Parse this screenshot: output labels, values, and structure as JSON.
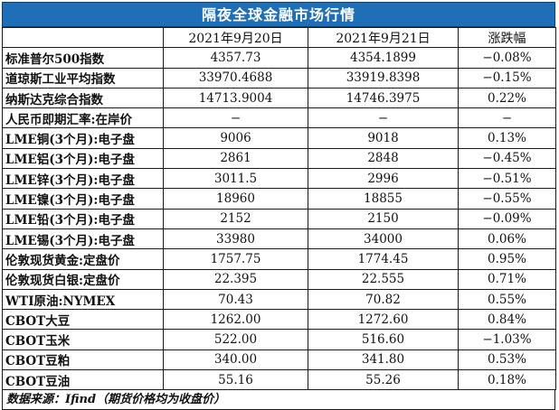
{
  "title": "隔夜全球金融市场行情",
  "headers": [
    "",
    "2021年9月20日",
    "2021年9月21日",
    "涨跌幅"
  ],
  "rows": [
    {
      "name": "标准普尔500指数",
      "d1": "4357.73",
      "d2": "4354.1899",
      "chg": "−0.08%"
    },
    {
      "name": "道琼斯工业平均指数",
      "d1": "33970.4688",
      "d2": "33919.8398",
      "chg": "−0.15%"
    },
    {
      "name": "纳斯达克综合指数",
      "d1": "14713.9004",
      "d2": "14746.3975",
      "chg": "0.22%"
    },
    {
      "name": "人民币即期汇率:在岸价",
      "d1": "−",
      "d2": "−",
      "chg": "−"
    },
    {
      "name": "LME铜(3个月):电子盘",
      "d1": "9006",
      "d2": "9018",
      "chg": "0.13%"
    },
    {
      "name": "LME铝(3个月):电子盘",
      "d1": "2861",
      "d2": "2848",
      "chg": "−0.45%"
    },
    {
      "name": "LME锌(3个月):电子盘",
      "d1": "3011.5",
      "d2": "2996",
      "chg": "−0.51%"
    },
    {
      "name": "LME镍(3个月):电子盘",
      "d1": "18960",
      "d2": "18855",
      "chg": "−0.55%"
    },
    {
      "name": "LME铅(3个月):电子盘",
      "d1": "2152",
      "d2": "2150",
      "chg": "−0.09%"
    },
    {
      "name": "LME锡(3个月):电子盘",
      "d1": "33980",
      "d2": "34000",
      "chg": "0.06%"
    },
    {
      "name": "伦敦现货黄金:定盘价",
      "d1": "1757.75",
      "d2": "1774.45",
      "chg": "0.95%"
    },
    {
      "name": "伦敦现货白银:定盘价",
      "d1": "22.395",
      "d2": "22.555",
      "chg": "0.71%"
    },
    {
      "name": "WTI原油:NYMEX",
      "d1": "70.43",
      "d2": "70.82",
      "chg": "0.55%"
    },
    {
      "name": "CBOT大豆",
      "d1": "1262.00",
      "d2": "1272.60",
      "chg": "0.84%"
    },
    {
      "name": "CBOT玉米",
      "d1": "522.00",
      "d2": "516.60",
      "chg": "−1.03%"
    },
    {
      "name": "CBOT豆粕",
      "d1": "340.00",
      "d2": "341.80",
      "chg": "0.53%"
    },
    {
      "name": "CBOT豆油",
      "d1": "55.16",
      "d2": "55.26",
      "chg": "0.18%"
    }
  ],
  "source": "数据来源：Ifind（期货价格均为收盘价）",
  "colors": {
    "title_bg": "#1f6fb8",
    "title_text": "#ffffff"
  }
}
